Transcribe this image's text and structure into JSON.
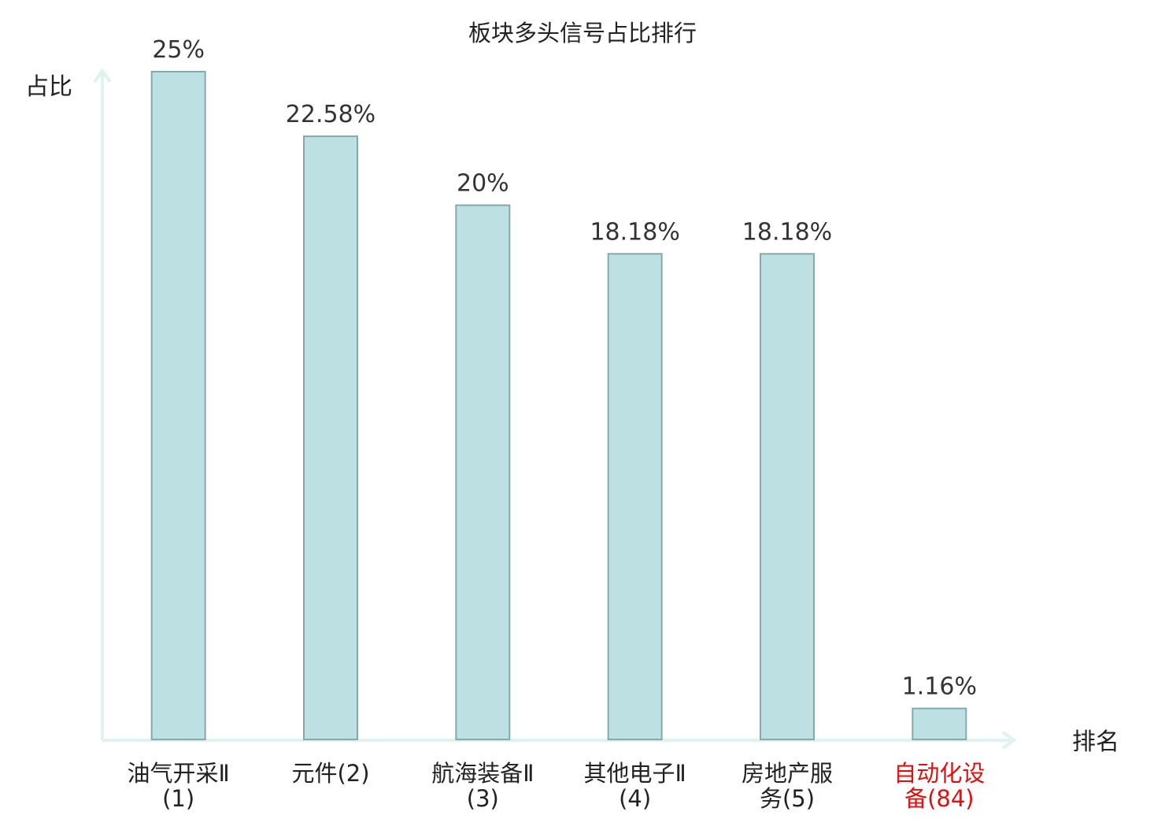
{
  "chart_data": {
    "type": "bar",
    "title": "板块多头信号占比排行",
    "y_label": "占比",
    "x_label": "排名",
    "categories": [
      "油气开采Ⅱ(1)",
      "元件(2)",
      "航海装备Ⅱ(3)",
      "其他电子Ⅱ(4)",
      "房地产服务(5)",
      "自动化设备(84)"
    ],
    "category_colors": [
      "#222222",
      "#222222",
      "#222222",
      "#222222",
      "#222222",
      "#e01010"
    ],
    "values": [
      25,
      22.58,
      20,
      18.18,
      18.18,
      1.16
    ],
    "value_labels": [
      "25%",
      "22.58%",
      "20%",
      "18.18%",
      "18.18%",
      "1.16%"
    ],
    "color": "#bde0e2",
    "ylim": [
      0,
      25
    ]
  }
}
